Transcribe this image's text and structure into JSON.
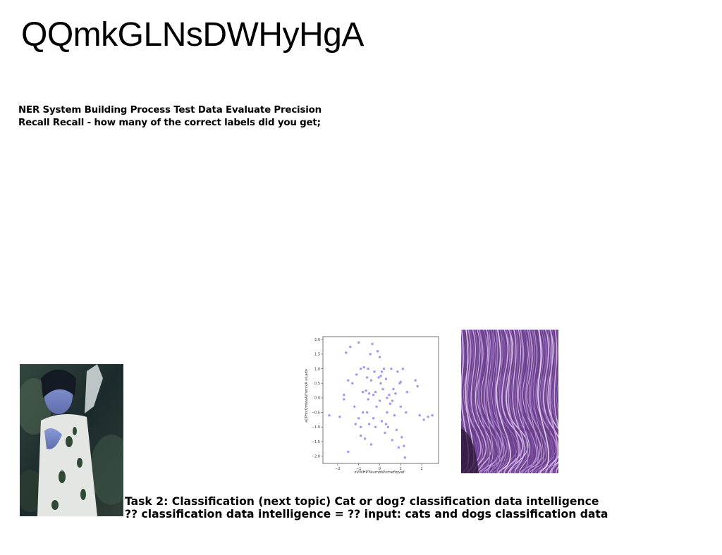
{
  "title": "QQmkGLNsDWHyHgA",
  "intro_lines": [
    "NER System Building Process Test Data Evaluate Precision",
    "Recall Recall - how many of the correct labels did you get;"
  ],
  "caption_lines": [
    "Task 2: Classification (next topic) Cat or dog? classification data intelligence",
    "?? classification data intelligence = ?? input: cats and dogs classification data"
  ],
  "chart_data": {
    "type": "scatter",
    "xlabel": "zVWHPYkumbWxmefiqvaf",
    "ylabel": "aCPhtcQmIoaAjYwzckA viLado",
    "xlim": [
      -2.7,
      2.8
    ],
    "ylim": [
      -2.25,
      2.1
    ],
    "xticks": [
      "-2",
      "-1",
      "0",
      "1",
      "2"
    ],
    "yticks": [
      "2.0",
      "1.5",
      "1.0",
      "0.5",
      "0.0",
      "-0.5",
      "-1.0",
      "-1.5",
      "-2.0"
    ],
    "grid": false,
    "color": "#9b9bf5",
    "points": [
      [
        -2.4,
        -0.6
      ],
      [
        -1.9,
        -0.65
      ],
      [
        -1.7,
        0.1
      ],
      [
        -1.6,
        1.55
      ],
      [
        -1.5,
        0.6
      ],
      [
        -1.5,
        -1.85
      ],
      [
        -1.4,
        1.75
      ],
      [
        -1.3,
        0.5
      ],
      [
        -1.2,
        -0.3
      ],
      [
        -1.1,
        0.8
      ],
      [
        -1.0,
        1.9
      ],
      [
        -1.0,
        -0.7
      ],
      [
        -0.9,
        1.0
      ],
      [
        -0.9,
        -1.3
      ],
      [
        -0.8,
        -0.5
      ],
      [
        -0.8,
        0.2
      ],
      [
        -0.75,
        1.05
      ],
      [
        -0.7,
        -1.4
      ],
      [
        -0.65,
        0.25
      ],
      [
        -0.6,
        0.7
      ],
      [
        -0.6,
        -0.5
      ],
      [
        -0.55,
        1.0
      ],
      [
        -0.5,
        -0.9
      ],
      [
        -0.5,
        0.15
      ],
      [
        -0.45,
        1.5
      ],
      [
        -0.4,
        0.6
      ],
      [
        -0.4,
        -1.6
      ],
      [
        -0.35,
        1.85
      ],
      [
        -0.3,
        -0.7
      ],
      [
        -0.25,
        0.9
      ],
      [
        -0.2,
        0.2
      ],
      [
        -0.15,
        -0.3
      ],
      [
        -0.1,
        1.6
      ],
      [
        -0.05,
        0.7
      ],
      [
        0.0,
        -0.1
      ],
      [
        0.0,
        1.4
      ],
      [
        0.05,
        0.5
      ],
      [
        0.1,
        -0.8
      ],
      [
        0.15,
        0.3
      ],
      [
        0.2,
        1.0
      ],
      [
        0.25,
        -1.2
      ],
      [
        0.3,
        0.65
      ],
      [
        0.35,
        -0.5
      ],
      [
        0.4,
        -1.0
      ],
      [
        0.45,
        0.1
      ],
      [
        0.5,
        -0.2
      ],
      [
        0.55,
        1.0
      ],
      [
        0.6,
        -1.45
      ],
      [
        0.65,
        0.3
      ],
      [
        0.7,
        -0.6
      ],
      [
        0.75,
        0.15
      ],
      [
        0.8,
        -1.1
      ],
      [
        0.85,
        0.9
      ],
      [
        0.9,
        -1.7
      ],
      [
        0.95,
        0.5
      ],
      [
        1.0,
        -0.3
      ],
      [
        1.05,
        -1.35
      ],
      [
        1.1,
        1.0
      ],
      [
        1.15,
        -1.65
      ],
      [
        1.2,
        -2.05
      ],
      [
        1.25,
        -0.5
      ],
      [
        1.3,
        0.2
      ],
      [
        1.7,
        0.6
      ],
      [
        1.8,
        0.4
      ],
      [
        1.9,
        -0.6
      ],
      [
        2.1,
        -0.75
      ],
      [
        2.3,
        -0.65
      ],
      [
        2.5,
        -0.6
      ],
      [
        -1.15,
        -0.9
      ],
      [
        -0.2,
        -1.0
      ],
      [
        0.3,
        -0.9
      ],
      [
        0.05,
        0.75
      ],
      [
        -0.55,
        -0.05
      ],
      [
        0.6,
        -0.1
      ],
      [
        -1.7,
        -0.05
      ],
      [
        0.35,
        0.0
      ],
      [
        -0.9,
        -1.0
      ],
      [
        0.1,
        0.9
      ],
      [
        1.0,
        0.55
      ],
      [
        -0.3,
        0.1
      ]
    ]
  },
  "images": {
    "photo": "photo-of-woman-in-forest",
    "texture": "purple-flowing-lines-texture"
  }
}
